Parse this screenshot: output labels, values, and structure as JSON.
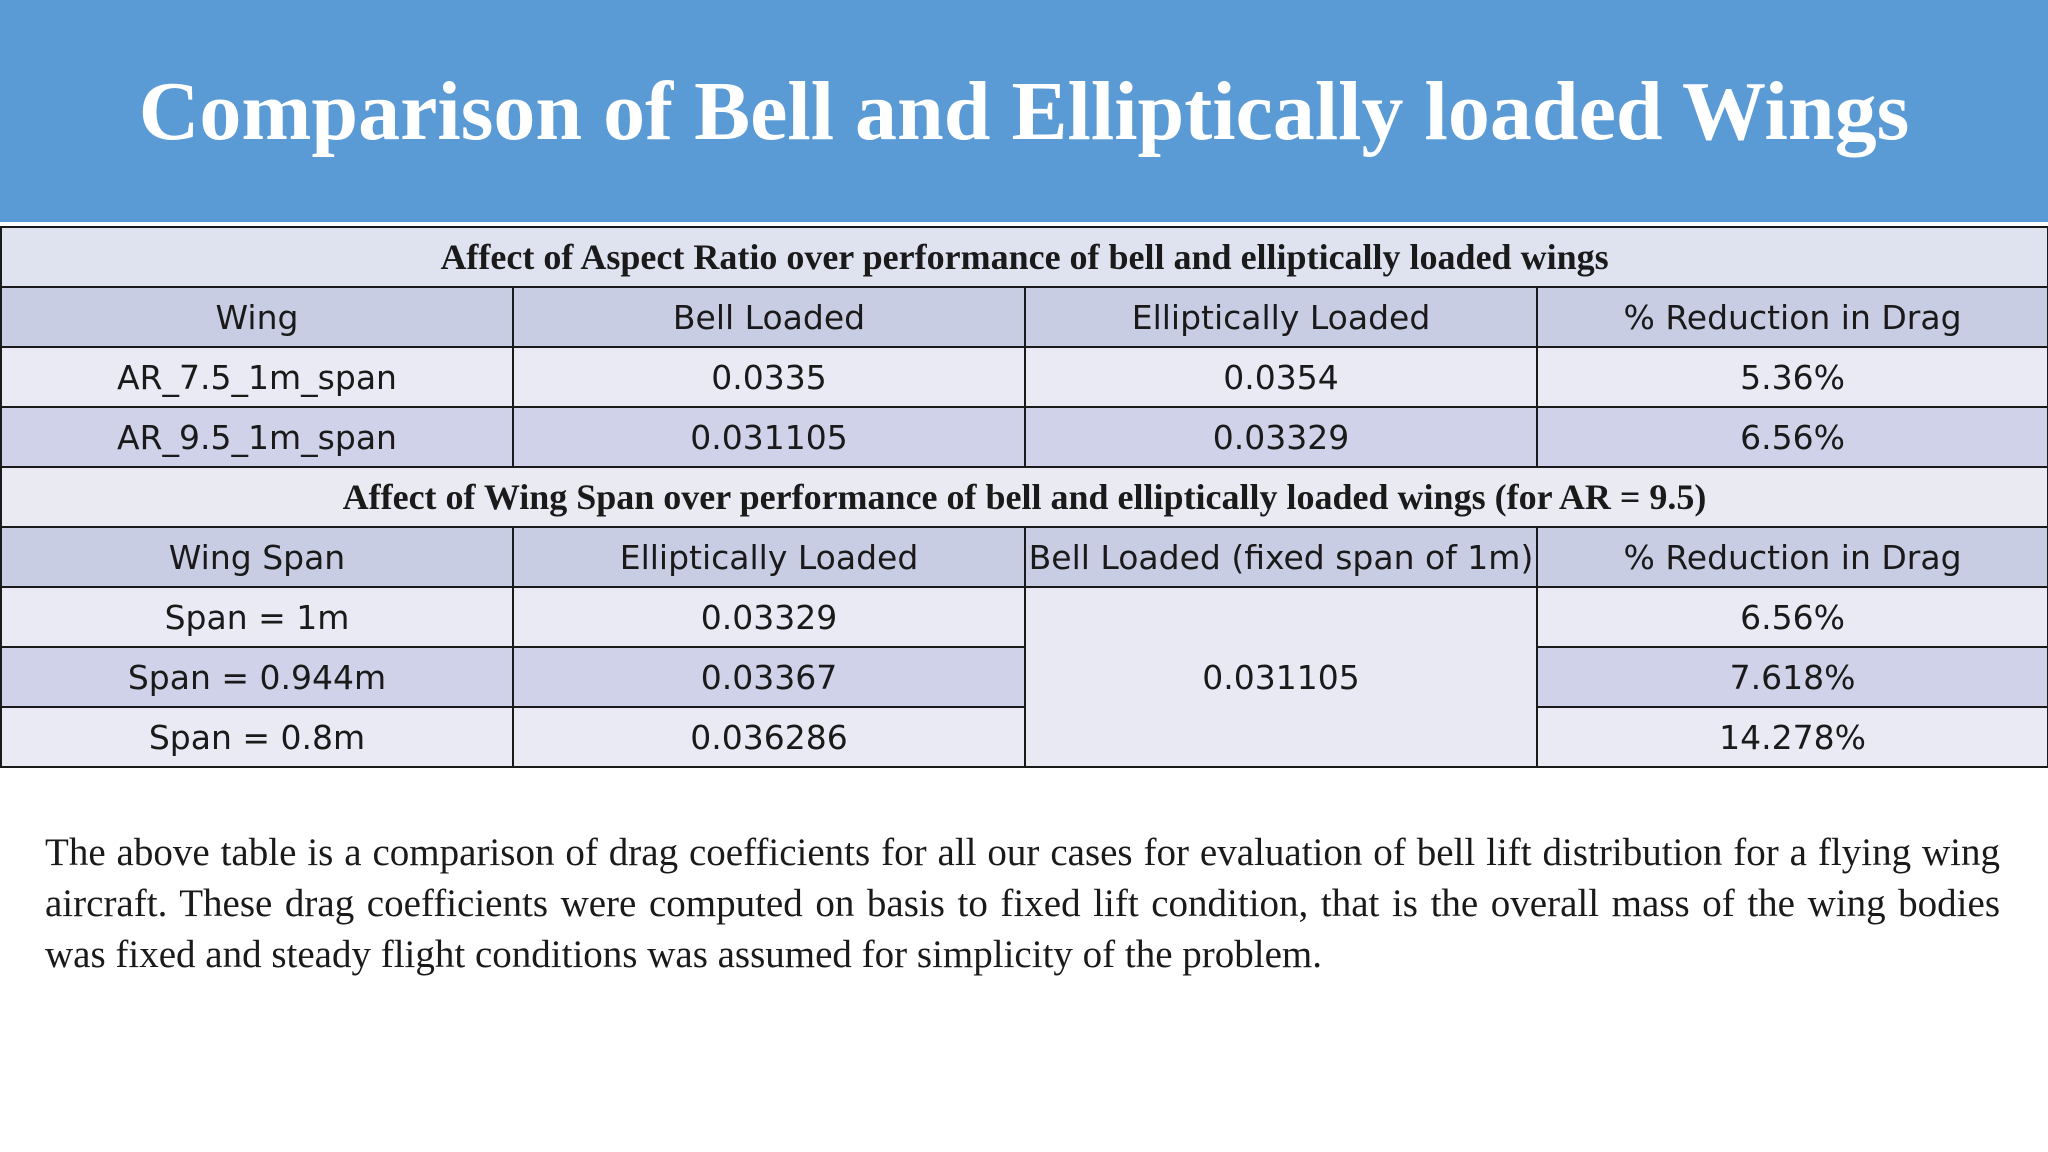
{
  "slide": {
    "title": "Comparison of Bell and Elliptically loaded Wings",
    "accent_color": "#5b9bd5"
  },
  "table": {
    "section1": {
      "title": "Affect of Aspect Ratio over performance of bell and elliptically loaded wings",
      "headers": [
        "Wing",
        "Bell Loaded",
        "Elliptically Loaded",
        "% Reduction in Drag"
      ],
      "rows": [
        [
          "AR_7.5_1m_span",
          "0.0335",
          "0.0354",
          "5.36%"
        ],
        [
          "AR_9.5_1m_span",
          "0.031105",
          "0.03329",
          "6.56%"
        ]
      ]
    },
    "section2": {
      "title": "Affect of Wing Span over performance of bell and elliptically loaded wings (for AR = 9.5)",
      "headers": [
        "Wing Span",
        "Elliptically Loaded",
        "Bell Loaded (fixed span of 1m)",
        "% Reduction in Drag"
      ],
      "bell_loaded_shared": "0.031105",
      "rows": [
        {
          "span": "Span = 1m",
          "elliptical": "0.03329",
          "reduction": "6.56%"
        },
        {
          "span": "Span = 0.944m",
          "elliptical": "0.03367",
          "reduction": "7.618%"
        },
        {
          "span": "Span = 0.8m",
          "elliptical": "0.036286",
          "reduction": "14.278%"
        }
      ]
    }
  },
  "summary": "The above table is a comparison of drag coefficients for all our cases for evaluation of bell lift distribution for a flying wing aircraft. These drag coefficients were computed on basis to fixed lift condition, that is the overall mass of the wing bodies was fixed and steady flight conditions was assumed for simplicity of the problem."
}
